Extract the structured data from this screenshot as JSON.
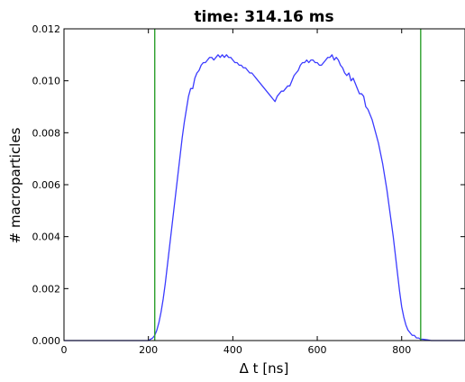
{
  "chart_data": {
    "type": "line",
    "title": "time: 314.16 ms",
    "xlabel": "Δ t [ns]",
    "ylabel": "# macroparticles",
    "xlim": [
      0,
      950
    ],
    "ylim": [
      0,
      0.012
    ],
    "x_ticks": [
      {
        "value": 0,
        "label": "0"
      },
      {
        "value": 200,
        "label": "200"
      },
      {
        "value": 400,
        "label": "400"
      },
      {
        "value": 600,
        "label": "600"
      },
      {
        "value": 800,
        "label": "800"
      }
    ],
    "y_ticks": [
      {
        "value": 0.0,
        "label": "0.000"
      },
      {
        "value": 0.002,
        "label": "0.002"
      },
      {
        "value": 0.004,
        "label": "0.004"
      },
      {
        "value": 0.006,
        "label": "0.006"
      },
      {
        "value": 0.008,
        "label": "0.008"
      },
      {
        "value": 0.01,
        "label": "0.010"
      },
      {
        "value": 0.012,
        "label": "0.012"
      }
    ],
    "grid": false,
    "legend": "none",
    "vertical_lines": [
      {
        "x": 215,
        "color": "#2ca02c"
      },
      {
        "x": 845,
        "color": "#2ca02c"
      }
    ],
    "series": [
      {
        "color": "#3b3bff",
        "x": [
          0,
          150,
          200,
          205,
          210,
          215,
          220,
          225,
          230,
          235,
          240,
          245,
          250,
          255,
          260,
          265,
          270,
          275,
          280,
          285,
          290,
          295,
          300,
          305,
          310,
          315,
          320,
          325,
          330,
          335,
          340,
          345,
          350,
          355,
          360,
          365,
          370,
          375,
          380,
          385,
          390,
          395,
          400,
          405,
          410,
          415,
          420,
          425,
          430,
          435,
          440,
          445,
          450,
          455,
          460,
          465,
          470,
          475,
          480,
          485,
          490,
          495,
          500,
          505,
          510,
          515,
          520,
          525,
          530,
          535,
          540,
          545,
          550,
          555,
          560,
          565,
          570,
          575,
          580,
          585,
          590,
          595,
          600,
          605,
          610,
          615,
          620,
          625,
          630,
          635,
          640,
          645,
          650,
          655,
          660,
          665,
          670,
          675,
          680,
          685,
          690,
          695,
          700,
          705,
          710,
          715,
          720,
          725,
          730,
          735,
          740,
          745,
          750,
          755,
          760,
          765,
          770,
          775,
          780,
          785,
          790,
          795,
          800,
          805,
          810,
          815,
          820,
          825,
          830,
          835,
          840,
          845,
          850,
          860,
          870,
          880,
          900,
          950
        ],
        "y": [
          0.0,
          0.0,
          0.0,
          5e-05,
          0.0001,
          0.0002,
          0.0004,
          0.0007,
          0.0011,
          0.0016,
          0.0022,
          0.0029,
          0.0036,
          0.0043,
          0.005,
          0.0057,
          0.0064,
          0.0071,
          0.0078,
          0.0084,
          0.0089,
          0.0094,
          0.0097,
          0.0097,
          0.0101,
          0.0103,
          0.0104,
          0.0106,
          0.0107,
          0.0107,
          0.0108,
          0.0109,
          0.0109,
          0.0108,
          0.0109,
          0.011,
          0.0109,
          0.011,
          0.0109,
          0.011,
          0.0109,
          0.0109,
          0.0108,
          0.0107,
          0.0107,
          0.0106,
          0.0106,
          0.0105,
          0.0105,
          0.0104,
          0.0103,
          0.0103,
          0.0102,
          0.0101,
          0.01,
          0.0099,
          0.0098,
          0.0097,
          0.0096,
          0.0095,
          0.0094,
          0.0093,
          0.0092,
          0.0094,
          0.0095,
          0.0096,
          0.0096,
          0.0097,
          0.0098,
          0.0098,
          0.01,
          0.0102,
          0.0103,
          0.0104,
          0.0106,
          0.0107,
          0.0107,
          0.0108,
          0.0107,
          0.0108,
          0.0108,
          0.0107,
          0.0107,
          0.0106,
          0.0106,
          0.0107,
          0.0108,
          0.0109,
          0.0109,
          0.011,
          0.0108,
          0.0109,
          0.0108,
          0.0106,
          0.0105,
          0.0103,
          0.0102,
          0.0103,
          0.01,
          0.0101,
          0.0099,
          0.0097,
          0.0095,
          0.0095,
          0.0094,
          0.009,
          0.0089,
          0.0087,
          0.0085,
          0.0082,
          0.0079,
          0.0076,
          0.0072,
          0.0068,
          0.0063,
          0.0058,
          0.0052,
          0.0046,
          0.004,
          0.0033,
          0.0026,
          0.0019,
          0.0013,
          0.0009,
          0.0006,
          0.0004,
          0.0003,
          0.0002,
          0.0002,
          0.0001,
          0.0001,
          5e-05,
          5e-05,
          3e-05,
          0.0,
          0.0,
          0.0,
          0.0
        ]
      }
    ]
  }
}
